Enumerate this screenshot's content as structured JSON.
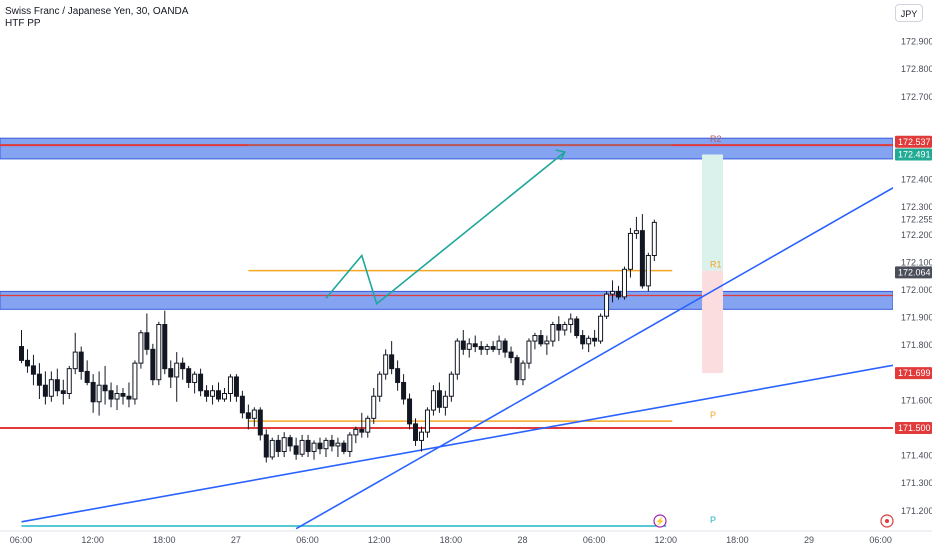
{
  "header": {
    "symbol_line": "Swiss Franc / Japanese Yen, 30, OANDA",
    "indicator": "HTF PP",
    "currency": "JPY"
  },
  "chart_data": {
    "type": "candlestick",
    "y_ticks": [
      171.2,
      171.3,
      171.4,
      171.6,
      171.8,
      171.9,
      172.0,
      172.1,
      172.2,
      172.3,
      172.4,
      172.7,
      172.8,
      172.9
    ],
    "x_labels": [
      {
        "label": "06:00",
        "x": 0
      },
      {
        "label": "12:00",
        "x": 12
      },
      {
        "label": "18:00",
        "x": 24
      },
      {
        "label": "27",
        "x": 36
      },
      {
        "label": "06:00",
        "x": 48
      },
      {
        "label": "12:00",
        "x": 60
      },
      {
        "label": "18:00",
        "x": 72
      },
      {
        "label": "28",
        "x": 84
      },
      {
        "label": "06:00",
        "x": 96
      },
      {
        "label": "12:00",
        "x": 108
      },
      {
        "label": "18:00",
        "x": 120
      },
      {
        "label": "29",
        "x": 132
      },
      {
        "label": "06:00",
        "x": 144
      }
    ],
    "price_badges": [
      {
        "text": "172.537",
        "value": 172.537,
        "color": "#e03a3a"
      },
      {
        "text": "172.491",
        "value": 172.491,
        "color": "#22ab94"
      },
      {
        "text": "172.064",
        "value": 172.064,
        "color": "#4a4e59"
      },
      {
        "text": "171.699",
        "value": 171.699,
        "color": "#e03a3a"
      },
      {
        "text": "171.500",
        "value": 171.5,
        "color": "#e03a3a"
      }
    ],
    "zones": [
      {
        "name": "upper-supply-zone",
        "from": 172.475,
        "to": 172.55,
        "color": "#5b86ee"
      },
      {
        "name": "lower-support-zone",
        "from": 171.93,
        "to": 171.995,
        "color": "#5b86ee"
      }
    ],
    "pivots": [
      {
        "label": "R2",
        "value": 172.525,
        "x_from": 38,
        "x_to": 109,
        "color": "#b25e5e"
      },
      {
        "label": "R1",
        "value": 172.07,
        "x_from": 38,
        "x_to": 109,
        "color": "#f5a623"
      },
      {
        "label": "P",
        "value": 171.525,
        "x_from": 38,
        "x_to": 109,
        "color": "#f5a623"
      },
      {
        "label": "P",
        "value": 171.145,
        "x_from": 0,
        "x_to": 108,
        "color": "#22b5c9"
      }
    ],
    "resistance_line": {
      "value": 172.525,
      "color": "#e03a3a"
    },
    "support_line": {
      "value": 171.5,
      "color": "#e03a3a"
    },
    "zone_edge_line": {
      "value": 171.98,
      "color": "#e03a3a"
    },
    "trendlines": [
      {
        "from": [
          0,
          171.16
        ],
        "to": [
          148,
          171.735
        ],
        "color": "#2962ff"
      },
      {
        "from": [
          46,
          171.135
        ],
        "to": [
          148,
          172.395
        ],
        "color": "#2962ff"
      }
    ],
    "projection_path": {
      "points": [
        [
          51,
          171.97
        ],
        [
          57,
          172.125
        ],
        [
          59.5,
          171.95
        ],
        [
          91,
          172.5
        ]
      ],
      "color": "#1ea69a"
    },
    "position": {
      "x_from": 114,
      "x_to": 117.5,
      "target": 172.491,
      "entry": 172.07,
      "stop": 171.699,
      "profit_color": "#daf1ec",
      "loss_color": "#fbdde0"
    },
    "candles": [
      [
        171.795,
        171.855,
        171.735,
        171.745
      ],
      [
        171.745,
        171.785,
        171.7,
        171.725
      ],
      [
        171.725,
        171.765,
        171.655,
        171.695
      ],
      [
        171.695,
        171.735,
        171.605,
        171.655
      ],
      [
        171.655,
        171.705,
        171.585,
        171.615
      ],
      [
        171.615,
        171.705,
        171.595,
        171.675
      ],
      [
        171.675,
        171.715,
        171.615,
        171.635
      ],
      [
        171.635,
        171.675,
        171.585,
        171.625
      ],
      [
        171.625,
        171.725,
        171.605,
        171.715
      ],
      [
        171.715,
        171.845,
        171.695,
        171.775
      ],
      [
        171.775,
        171.795,
        171.675,
        171.705
      ],
      [
        171.705,
        171.745,
        171.655,
        171.665
      ],
      [
        171.665,
        171.695,
        171.555,
        171.595
      ],
      [
        171.595,
        171.705,
        171.545,
        171.655
      ],
      [
        171.655,
        171.725,
        171.585,
        171.635
      ],
      [
        171.635,
        171.665,
        171.575,
        171.605
      ],
      [
        171.605,
        171.655,
        171.565,
        171.625
      ],
      [
        171.625,
        171.645,
        171.585,
        171.615
      ],
      [
        171.615,
        171.665,
        171.575,
        171.605
      ],
      [
        171.605,
        171.745,
        171.585,
        171.735
      ],
      [
        171.735,
        171.855,
        171.715,
        171.845
      ],
      [
        171.845,
        171.915,
        171.765,
        171.785
      ],
      [
        171.785,
        171.805,
        171.655,
        171.675
      ],
      [
        171.675,
        171.885,
        171.655,
        171.875
      ],
      [
        171.875,
        171.925,
        171.695,
        171.715
      ],
      [
        171.715,
        171.745,
        171.645,
        171.685
      ],
      [
        171.685,
        171.775,
        171.595,
        171.735
      ],
      [
        171.735,
        171.755,
        171.675,
        171.715
      ],
      [
        171.715,
        171.725,
        171.645,
        171.665
      ],
      [
        171.665,
        171.705,
        171.625,
        171.695
      ],
      [
        171.695,
        171.715,
        171.615,
        171.635
      ],
      [
        171.635,
        171.655,
        171.595,
        171.615
      ],
      [
        171.615,
        171.655,
        171.585,
        171.635
      ],
      [
        171.635,
        171.665,
        171.595,
        171.605
      ],
      [
        171.605,
        171.645,
        171.595,
        171.625
      ],
      [
        171.625,
        171.695,
        171.595,
        171.685
      ],
      [
        171.685,
        171.695,
        171.595,
        171.615
      ],
      [
        171.615,
        171.635,
        171.535,
        171.555
      ],
      [
        171.555,
        171.585,
        171.495,
        171.535
      ],
      [
        171.535,
        171.575,
        171.505,
        171.565
      ],
      [
        171.565,
        171.575,
        171.455,
        171.475
      ],
      [
        171.475,
        171.495,
        171.375,
        171.395
      ],
      [
        171.395,
        171.465,
        171.385,
        171.455
      ],
      [
        171.455,
        171.475,
        171.395,
        171.415
      ],
      [
        171.415,
        171.485,
        171.395,
        171.465
      ],
      [
        171.465,
        171.475,
        171.415,
        171.435
      ],
      [
        171.435,
        171.465,
        171.385,
        171.405
      ],
      [
        171.405,
        171.475,
        171.395,
        171.455
      ],
      [
        171.455,
        171.475,
        171.395,
        171.415
      ],
      [
        171.415,
        171.455,
        171.385,
        171.445
      ],
      [
        171.445,
        171.465,
        171.405,
        171.425
      ],
      [
        171.425,
        171.465,
        171.395,
        171.455
      ],
      [
        171.455,
        171.475,
        171.415,
        171.435
      ],
      [
        171.435,
        171.465,
        171.395,
        171.445
      ],
      [
        171.445,
        171.455,
        171.405,
        171.415
      ],
      [
        171.415,
        171.485,
        171.395,
        171.475
      ],
      [
        171.475,
        171.505,
        171.445,
        171.495
      ],
      [
        171.495,
        171.555,
        171.465,
        171.485
      ],
      [
        171.485,
        171.545,
        171.465,
        171.535
      ],
      [
        171.535,
        171.645,
        171.515,
        171.615
      ],
      [
        171.615,
        171.705,
        171.595,
        171.695
      ],
      [
        171.695,
        171.785,
        171.675,
        171.765
      ],
      [
        171.765,
        171.815,
        171.695,
        171.715
      ],
      [
        171.715,
        171.745,
        171.635,
        171.665
      ],
      [
        171.665,
        171.695,
        171.585,
        171.605
      ],
      [
        171.605,
        171.625,
        171.495,
        171.515
      ],
      [
        171.515,
        171.535,
        171.435,
        171.455
      ],
      [
        171.455,
        171.505,
        171.415,
        171.485
      ],
      [
        171.485,
        171.575,
        171.465,
        171.565
      ],
      [
        171.565,
        171.655,
        171.545,
        171.635
      ],
      [
        171.635,
        171.665,
        171.555,
        171.575
      ],
      [
        171.575,
        171.635,
        171.545,
        171.615
      ],
      [
        171.615,
        171.705,
        171.595,
        171.695
      ],
      [
        171.695,
        171.825,
        171.675,
        171.815
      ],
      [
        171.815,
        171.855,
        171.765,
        171.785
      ],
      [
        171.785,
        171.825,
        171.755,
        171.805
      ],
      [
        171.805,
        171.835,
        171.775,
        171.795
      ],
      [
        171.795,
        171.815,
        171.765,
        171.785
      ],
      [
        171.785,
        171.805,
        171.765,
        171.795
      ],
      [
        171.795,
        171.815,
        171.775,
        171.785
      ],
      [
        171.785,
        171.835,
        171.765,
        171.815
      ],
      [
        171.815,
        171.825,
        171.755,
        171.775
      ],
      [
        171.775,
        171.795,
        171.735,
        171.755
      ],
      [
        171.755,
        171.765,
        171.655,
        171.675
      ],
      [
        171.675,
        171.745,
        171.655,
        171.735
      ],
      [
        171.735,
        171.825,
        171.715,
        171.815
      ],
      [
        171.815,
        171.845,
        171.785,
        171.835
      ],
      [
        171.835,
        171.855,
        171.795,
        171.805
      ],
      [
        171.805,
        171.835,
        171.765,
        171.815
      ],
      [
        171.815,
        171.885,
        171.795,
        171.875
      ],
      [
        171.875,
        171.905,
        171.815,
        171.855
      ],
      [
        171.855,
        171.885,
        171.835,
        171.875
      ],
      [
        171.875,
        171.915,
        171.845,
        171.895
      ],
      [
        171.895,
        171.905,
        171.825,
        171.835
      ],
      [
        171.835,
        171.855,
        171.785,
        171.805
      ],
      [
        171.805,
        171.835,
        171.775,
        171.825
      ],
      [
        171.825,
        171.855,
        171.795,
        171.815
      ],
      [
        171.815,
        171.915,
        171.805,
        171.905
      ],
      [
        171.905,
        171.995,
        171.895,
        171.985
      ],
      [
        171.985,
        172.035,
        171.955,
        171.995
      ],
      [
        171.995,
        172.015,
        171.965,
        171.975
      ],
      [
        171.975,
        172.085,
        171.965,
        172.075
      ],
      [
        172.075,
        172.225,
        172.045,
        172.205
      ],
      [
        172.205,
        172.265,
        172.185,
        172.215
      ],
      [
        172.215,
        172.275,
        172.005,
        172.015
      ],
      [
        172.015,
        172.135,
        171.995,
        172.125
      ],
      [
        172.125,
        172.255,
        172.105,
        172.245
      ]
    ]
  }
}
